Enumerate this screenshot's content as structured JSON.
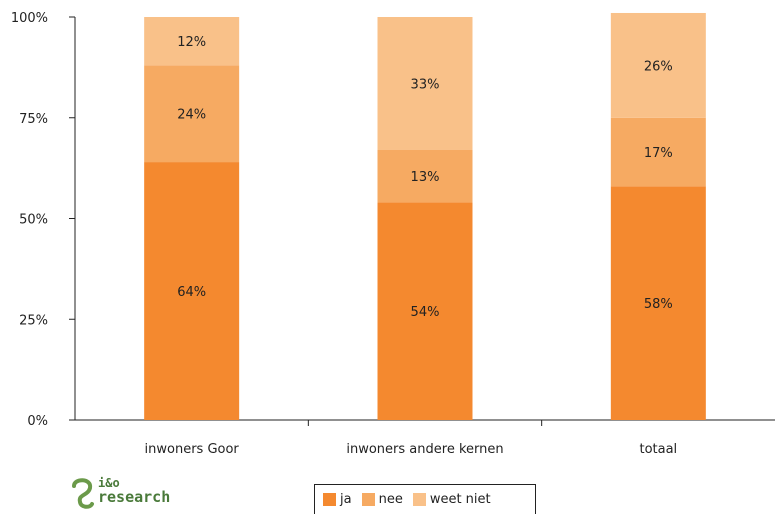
{
  "chart_data": {
    "type": "bar",
    "stacked": true,
    "categories": [
      "inwoners Goor",
      "inwoners andere kernen",
      "totaal"
    ],
    "series": [
      {
        "name": "ja",
        "values": [
          64,
          54,
          58
        ],
        "labels": [
          "64%",
          "54%",
          "58%"
        ],
        "color": "#f4892f"
      },
      {
        "name": "nee",
        "values": [
          24,
          13,
          17
        ],
        "labels": [
          "24%",
          "13%",
          "17%"
        ],
        "color": "#f6aa62"
      },
      {
        "name": "weet niet",
        "values": [
          12,
          33,
          26
        ],
        "labels": [
          "12%",
          "33%",
          "26%"
        ],
        "color": "#f9c189"
      }
    ],
    "ylim": [
      0,
      100
    ],
    "yticks": [
      0,
      25,
      50,
      75,
      100
    ],
    "ytick_labels": [
      "0%",
      "25%",
      "50%",
      "75%",
      "100%"
    ],
    "legend_position": "bottom"
  },
  "logo": {
    "line1": "i&o",
    "line2": "research"
  }
}
